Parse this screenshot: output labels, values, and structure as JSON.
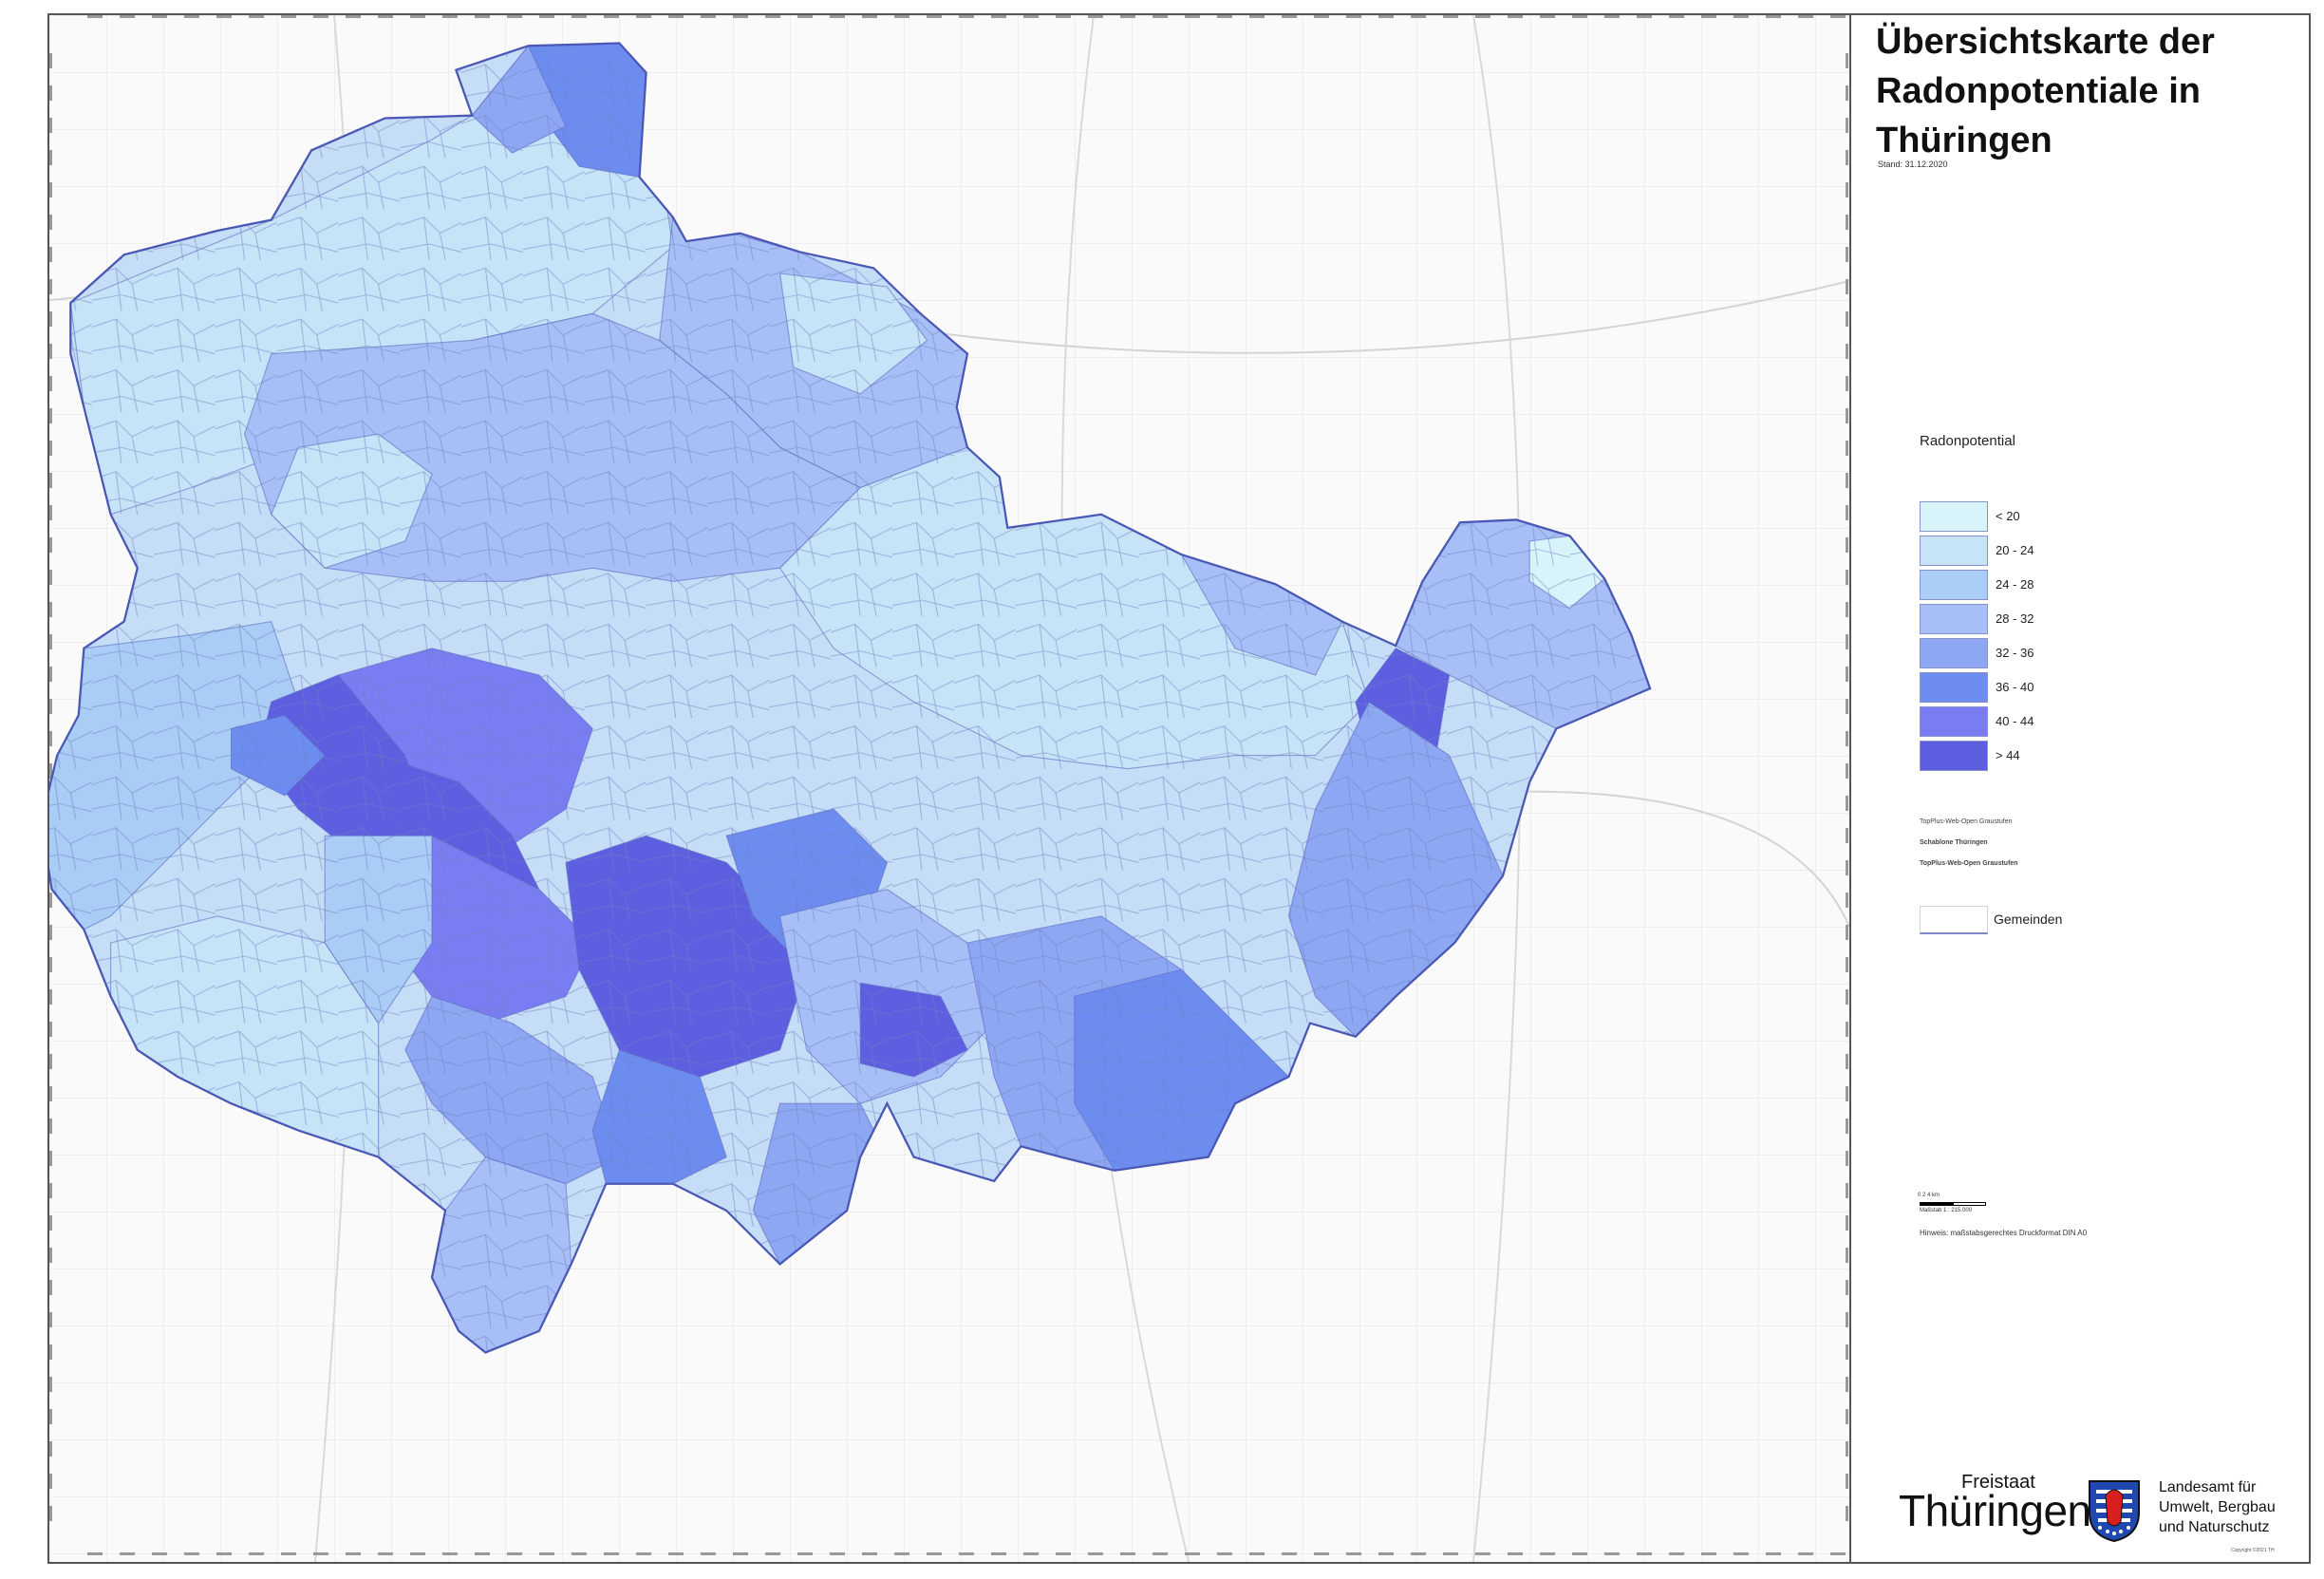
{
  "title": "Übersichtskarte der Radonpotentiale in Thüringen",
  "stand": "Stand: 31.12.2020",
  "legend": {
    "heading": "Radonpotential",
    "classes": [
      {
        "label": "< 20",
        "color": "#d9f3fb"
      },
      {
        "label": "20 - 24",
        "color": "#c7e3f7"
      },
      {
        "label": "24 - 28",
        "color": "#a9cdf5"
      },
      {
        "label": "28 - 32",
        "color": "#a7bff6"
      },
      {
        "label": "32 - 36",
        "color": "#8ea7f2"
      },
      {
        "label": "36 - 40",
        "color": "#6d8cf0"
      },
      {
        "label": "40 - 44",
        "color": "#7a7cf2"
      },
      {
        "label": "> 44",
        "color": "#5e5fe0"
      }
    ],
    "basemap_note_1": "TopPlus-Web-Open Graustufen",
    "basemap_note_2": "Schablone Thüringen",
    "basemap_note_3": "TopPlus-Web-Open Graustufen",
    "gemeinden": "Gemeinden"
  },
  "scale": {
    "ticks": "0    2    4 km",
    "text": "Maßstab 1 : 215.000",
    "hinweis": "Hinweis: maßstabsgerechtes Druckformat DIN A0"
  },
  "logo": {
    "freistaat": "Freistaat",
    "thueringen": "Thüringen",
    "agency_line1": "Landesamt für",
    "agency_line2": "Umwelt, Bergbau",
    "agency_line3": "und Naturschutz"
  },
  "copyright": "Copyright ©2021 TH",
  "icons": {
    "coat_of_arms": "thuringia-coat-of-arms-icon"
  }
}
